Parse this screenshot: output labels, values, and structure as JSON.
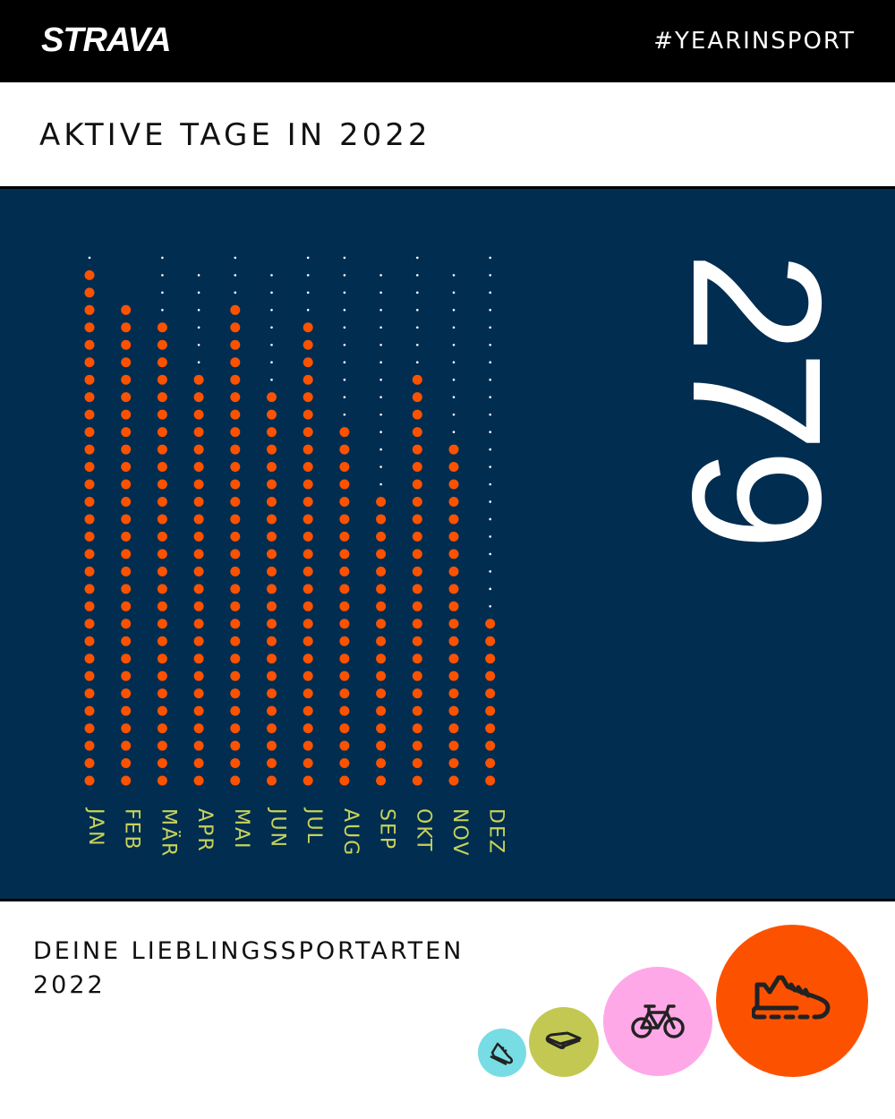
{
  "header": {
    "logo": "STRAVA",
    "hashtag": "#YEARINSPORT"
  },
  "title": "AKTIVE TAGE IN 2022",
  "total_active_days": "279",
  "colors": {
    "panel": "#002d50",
    "active": "#fc5200",
    "inactive": "#ffffff",
    "label": "#c6d25a"
  },
  "chart_data": {
    "type": "dot-matrix",
    "title": "AKTIVE TAGE IN 2022",
    "categories": [
      "JAN",
      "FEB",
      "MÄR",
      "APR",
      "MAI",
      "JUN",
      "JUL",
      "AUG",
      "SEP",
      "OKT",
      "NOV",
      "DEZ"
    ],
    "days_in_month": [
      31,
      28,
      31,
      30,
      31,
      30,
      31,
      31,
      30,
      31,
      30,
      31
    ],
    "active_days": [
      30,
      28,
      27,
      24,
      28,
      23,
      27,
      21,
      17,
      24,
      20,
      10
    ]
  },
  "favorites": {
    "title_line1": "DEINE LIEBLINGSSPORTARTEN",
    "title_line2": "2022",
    "sports": [
      {
        "icon": "run-shoe-icon",
        "color": "#fc5200"
      },
      {
        "icon": "bike-icon",
        "color": "#ffa8e8"
      },
      {
        "icon": "yoga-mat-icon",
        "color": "#c3c852"
      },
      {
        "icon": "walk-shoe-icon",
        "color": "#78dce4"
      }
    ]
  }
}
